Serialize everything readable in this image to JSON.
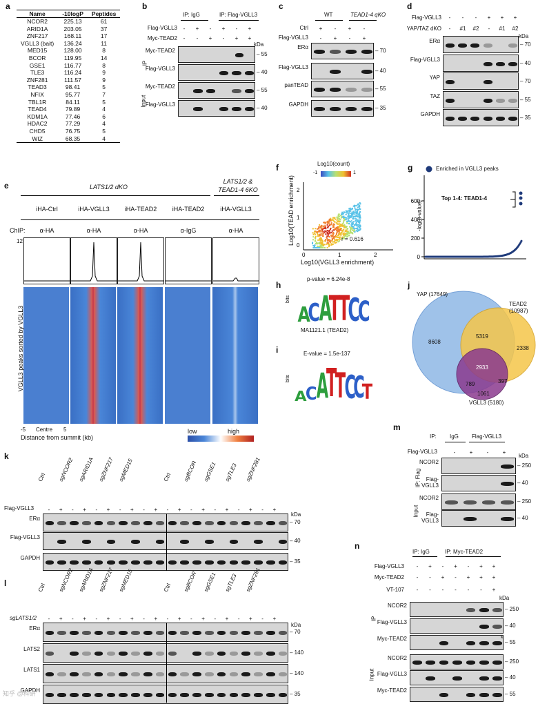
{
  "panels": {
    "a": {
      "letter": "a",
      "headers": [
        "Name",
        "-10logP",
        "Peptides"
      ],
      "rows": [
        [
          "NCOR2",
          "225.13",
          "61"
        ],
        [
          "ARID1A",
          "203.05",
          "37"
        ],
        [
          "ZNF217",
          "168.11",
          "17"
        ],
        [
          "VGLL3 (bait)",
          "136.24",
          "11"
        ],
        [
          "MED15",
          "128.00",
          "8"
        ],
        [
          "BCOR",
          "119.95",
          "14"
        ],
        [
          "GSE1",
          "116.77",
          "8"
        ],
        [
          "TLE3",
          "116.24",
          "9"
        ],
        [
          "ZNF281",
          "111.57",
          "9"
        ],
        [
          "TEAD3",
          "98.41",
          "5"
        ],
        [
          "NFIX",
          "95.77",
          "7"
        ],
        [
          "TBL1R",
          "84.11",
          "5"
        ],
        [
          "TEAD4",
          "79.89",
          "4"
        ],
        [
          "KDM1A",
          "77.46",
          "6"
        ],
        [
          "HDAC2",
          "77.29",
          "4"
        ],
        [
          "CHD5",
          "76.75",
          "5"
        ],
        [
          "WIZ",
          "68.35",
          "4"
        ]
      ]
    },
    "b": {
      "letter": "b",
      "ip_igg": "IP: IgG",
      "ip_flag": "IP: Flag-VGLL3",
      "row1": "Flag-VGLL3",
      "row2": "Myc-TEAD2",
      "row1_signs": [
        "-",
        "+",
        "-",
        "+",
        "-",
        "+"
      ],
      "row2_signs": [
        "-",
        "-",
        "+",
        "-",
        "+",
        "+"
      ],
      "ip": "IP",
      "input": "Input",
      "kda": "kDa",
      "blots": [
        {
          "label": "Myc-TEAD2",
          "kda": "55"
        },
        {
          "label": "Flag-VGLL3",
          "kda": "40"
        },
        {
          "label": "Myc-TEAD2",
          "kda": "55"
        },
        {
          "label": "Flag-VGLL3",
          "kda": "40"
        }
      ]
    },
    "c": {
      "letter": "c",
      "wt": "WT",
      "ko": "TEAD1-4 qKO",
      "row1": "Ctrl",
      "row2": "Flag-VGLL3",
      "row1_signs": [
        "+",
        "-",
        "+",
        "-"
      ],
      "row2_signs": [
        "-",
        "+",
        "-",
        "+"
      ],
      "blots": [
        {
          "label": "ERα",
          "kda": "70"
        },
        {
          "label": "Flag-VGLL3",
          "kda": "40"
        },
        {
          "label": "panTEAD",
          "kda": "55"
        },
        {
          "label": "GAPDH",
          "kda": "35"
        }
      ]
    },
    "d": {
      "letter": "d",
      "row1": "Flag-VGLL3",
      "row2": "YAP/TAZ dKO",
      "row1_signs": [
        "-",
        "-",
        "-",
        "+",
        "+",
        "+"
      ],
      "row2_signs": [
        "-",
        "#1",
        "#2",
        "-",
        "#1",
        "#2"
      ],
      "kda": "kDa",
      "blots": [
        {
          "label": "ERα",
          "kda": "70"
        },
        {
          "label": "Flag-VGLL3",
          "kda": "40"
        },
        {
          "label": "YAP",
          "kda": "70"
        },
        {
          "label": "TAZ",
          "kda": "55"
        },
        {
          "label": "GAPDH",
          "kda": "35"
        }
      ]
    },
    "e": {
      "letter": "e",
      "dko": "LATS1/2 dKO",
      "sixko_1": "LATS1/2 &",
      "sixko_2": "TEAD1-4 6KO",
      "conds": [
        "iHA-Ctrl",
        "iHA-VGLL3",
        "iHA-TEAD2",
        "iHA-TEAD2",
        "iHA-VGLL3"
      ],
      "chip": "ChIP:",
      "abs": [
        "α-HA",
        "α-HA",
        "α-HA",
        "α-IgG",
        "α-HA"
      ],
      "ymax": "12",
      "ylabel": "VGLL3 peaks sorted by VGLL3",
      "x_left": "-5",
      "x_mid": "Centre",
      "x_right": "5",
      "xlabel": "Distance from summit (kb)",
      "low": "low",
      "high": "high"
    },
    "f": {
      "letter": "f",
      "legend": "Log10(count)",
      "leg_min": "-1",
      "leg_max": "1",
      "r": "r = 0.616",
      "ylabel": "Log10(TEAD enrichment)",
      "xlabel": "Log10(VGLL3 enrichment)",
      "xticks": [
        "0",
        "1",
        "2"
      ],
      "yticks": [
        "0",
        "1",
        "2"
      ]
    },
    "g": {
      "letter": "g",
      "legend": "Enriched in VGLL3 peaks",
      "note": "Top 1-4: TEAD1-4",
      "ylabel": "-log(p-value)",
      "yticks": [
        "0",
        "200",
        "400",
        "600"
      ]
    },
    "h": {
      "letter": "h",
      "pval": "p-value = 6.24e-8",
      "name": "MA1121.1 (TEAD2)",
      "bits": "bits",
      "letters": "ACATTCC"
    },
    "i": {
      "letter": "i",
      "eval": "E-value = 1.5e-137",
      "bits": "bits",
      "letters": "ACATTCCT"
    },
    "j": {
      "letter": "j",
      "yap": "YAP (17649)",
      "tead2_1": "TEAD2",
      "tead2_2": "(10987)",
      "vgll3": "VGLL3 (5180)",
      "n8608": "8608",
      "n5319": "5319",
      "n2338": "2338",
      "n2933": "2933",
      "n789": "789",
      "n397": "397",
      "n1061": "1061"
    },
    "k": {
      "letter": "k",
      "cols": [
        "Ctrl",
        "sgNCOR2",
        "sgARID1A",
        "sgZNF217",
        "sgMED15",
        "Ctrl",
        "sgBCOR",
        "sgGSE1",
        "sgTLE3",
        "sgZNF281"
      ],
      "row1": "Flag-VGLL3",
      "kda": "kDa",
      "blots": [
        {
          "label": "ERα",
          "kda": "70"
        },
        {
          "label": "Flag-VGLL3",
          "kda": "40"
        },
        {
          "label": "GAPDH",
          "kda": "35"
        }
      ]
    },
    "l": {
      "letter": "l",
      "cols": [
        "Ctrl",
        "sgNCOR2",
        "sgARID1A",
        "sgZNF217",
        "sgMED15",
        "Ctrl",
        "sgBCOR",
        "sgGSE1",
        "sgTLE3",
        "sgZNF281"
      ],
      "row1": "sgLATS1/2",
      "kda": "kDa",
      "blots": [
        {
          "label": "ERα",
          "kda": "70"
        },
        {
          "label": "LATS2",
          "kda": "140"
        },
        {
          "label": "LATS1",
          "kda": "140"
        },
        {
          "label": "GAPDH",
          "kda": "35"
        }
      ]
    },
    "m": {
      "letter": "m",
      "ip": "IP:",
      "igg": "IgG",
      "flag": "Flag-VGLL3",
      "row1": "Flag-VGLL3",
      "signs": [
        "-",
        "+",
        "-",
        "+"
      ],
      "ipflag": "IP: Flag",
      "input": "Input",
      "kda": "kDa",
      "blots": [
        {
          "label": "NCOR2",
          "kda": "250"
        },
        {
          "label": "Flag-VGLL3",
          "kda": "40"
        },
        {
          "label": "NCOR2",
          "kda": "250"
        },
        {
          "label": "Flag-VGLL3",
          "kda": "40"
        }
      ]
    },
    "n": {
      "letter": "n",
      "ip_igg": "IP: IgG",
      "ip_myc": "IP: Myc-TEAD2",
      "row1": "Flag-VGLL3",
      "row2": "Myc-TEAD2",
      "row3": "VT-107",
      "s1": [
        "-",
        "+",
        "-",
        "+",
        "-",
        "+",
        "+"
      ],
      "s2": [
        "-",
        "-",
        "+",
        "-",
        "+",
        "+",
        "+"
      ],
      "s3": [
        "-",
        "-",
        "-",
        "-",
        "-",
        "-",
        "+"
      ],
      "kda": "kDa",
      "ip": "IP",
      "input": "Input",
      "star": "*",
      "blots": [
        {
          "label": "NCOR2",
          "kda": "250"
        },
        {
          "label": "Flag-VGLL3",
          "kda": "40"
        },
        {
          "label": "Myc-TEAD2",
          "kda": "55"
        },
        {
          "label": "NCOR2",
          "kda": "250"
        },
        {
          "label": "Flag-VGLL3",
          "kda": "40"
        },
        {
          "label": "Myc-TEAD2",
          "kda": "55"
        }
      ]
    }
  },
  "watermark": "知乎 @科研"
}
